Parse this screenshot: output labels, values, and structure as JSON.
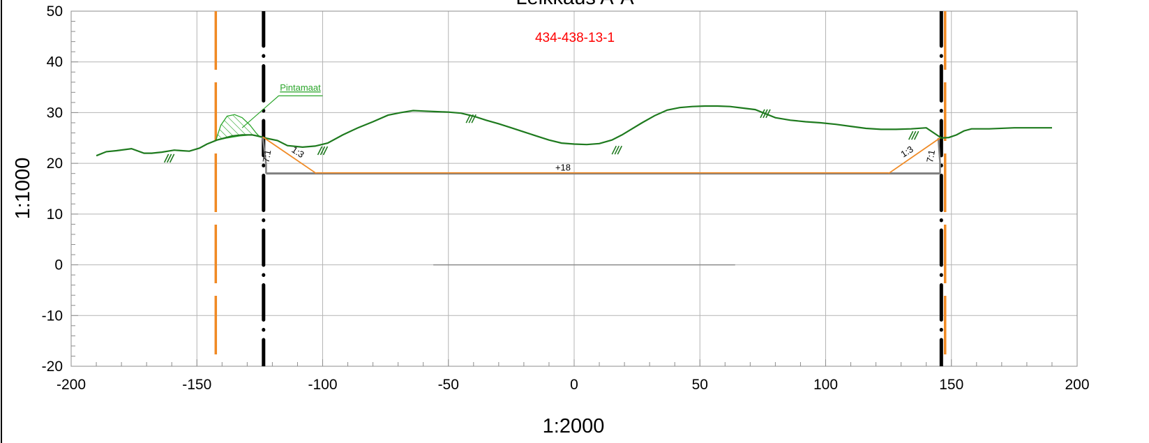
{
  "title": "Leikkaus A-A",
  "drawing_id": {
    "text": "434-438-13-1",
    "color": "#ff0000"
  },
  "colors": {
    "ground": "#1e7a1e",
    "hatch": "#2aa52a",
    "boundary_orange": "#f08a24",
    "boundary_black": "#000000",
    "slope_orange": "#f08a24",
    "base_grey": "#7f7f7f",
    "grid": "#b4b4b4"
  },
  "chart_data": {
    "type": "line",
    "title": "Leikkaus A-A",
    "xlabel": "1:2000",
    "ylabel": "1:1000",
    "xlim": [
      -200,
      200
    ],
    "ylim": [
      -20,
      50
    ],
    "xticks": [
      -200,
      -150,
      -100,
      -50,
      0,
      50,
      100,
      150,
      200
    ],
    "yticks": [
      -20,
      -10,
      0,
      10,
      20,
      30,
      40,
      50
    ],
    "grid": true,
    "ground_profile": {
      "x": [
        -190,
        -186,
        -182,
        -176,
        -171,
        -168,
        -164,
        -159,
        -156,
        -153,
        -149,
        -146,
        -142,
        -139,
        -136,
        -132,
        -128,
        -125,
        -122,
        -118,
        -114,
        -108,
        -103,
        -98,
        -92,
        -86,
        -80,
        -74,
        -69,
        -64,
        -60,
        -55,
        -50,
        -45,
        -40,
        -35,
        -30,
        -25,
        -20,
        -15,
        -10,
        -5,
        0,
        5,
        10,
        15,
        19,
        23,
        27,
        32,
        37,
        42,
        47,
        52,
        57,
        62,
        67,
        72,
        76,
        80,
        86,
        92,
        98,
        104,
        110,
        116,
        122,
        128,
        134,
        140,
        143,
        146,
        149,
        152,
        155,
        158,
        165,
        175,
        185,
        190
      ],
      "y": [
        21.5,
        22.3,
        22.5,
        22.9,
        22.0,
        22.0,
        22.2,
        22.6,
        22.5,
        22.4,
        23.0,
        23.8,
        24.6,
        25.0,
        25.4,
        25.6,
        25.6,
        25.3,
        24.9,
        24.5,
        23.5,
        23.2,
        23.4,
        24.0,
        25.6,
        27.0,
        28.2,
        29.5,
        30.0,
        30.4,
        30.3,
        30.2,
        30.1,
        29.9,
        29.3,
        28.5,
        27.8,
        27.0,
        26.2,
        25.4,
        24.6,
        24.0,
        23.8,
        23.7,
        23.9,
        24.6,
        25.6,
        26.8,
        28.0,
        29.4,
        30.5,
        31.0,
        31.2,
        31.3,
        31.3,
        31.2,
        30.9,
        30.6,
        29.8,
        29.0,
        28.5,
        28.2,
        28.0,
        27.7,
        27.3,
        26.9,
        26.7,
        26.7,
        26.8,
        27.0,
        26.0,
        25.0,
        25.1,
        25.6,
        26.4,
        26.8,
        26.8,
        27.0,
        27.0,
        27.0
      ]
    },
    "topsoil_area": {
      "label": "Pintamaat",
      "x": [
        -142.5,
        -140.5,
        -138,
        -135,
        -132,
        -129,
        -126.5,
        -125,
        -128,
        -133,
        -138,
        -142.5
      ],
      "y": [
        24.5,
        27.5,
        29.3,
        29.6,
        29.0,
        27.6,
        26.0,
        25.2,
        25.6,
        25.4,
        25.0,
        24.5
      ]
    },
    "excavation": {
      "base_label": "+18",
      "base_level": 18,
      "left_wall": {
        "x": [
          -122.5,
          -122.5,
          -123.8
        ],
        "y": [
          18,
          19.8,
          25.2
        ]
      },
      "right_wall": {
        "x": [
          145.5,
          145.5,
          144.8
        ],
        "y": [
          18,
          20.2,
          25.0
        ]
      },
      "left_slope": {
        "x": [
          -123.8,
          -102.5
        ],
        "y": [
          25.2,
          18
        ]
      },
      "right_slope": {
        "x": [
          125,
          145.5
        ],
        "y": [
          18,
          25.0
        ]
      },
      "slope_labels": [
        {
          "text": "7:1",
          "x": -121,
          "y": 21.3,
          "rotate": -80
        },
        {
          "text": "1:3",
          "x": -110.5,
          "y": 21.7,
          "rotate": 33
        },
        {
          "text": "1:3",
          "x": 133,
          "y": 21.8,
          "rotate": -33
        },
        {
          "text": "7:1",
          "x": 143,
          "y": 21.3,
          "rotate": -80
        }
      ]
    },
    "boundaries": [
      {
        "kind": "orange",
        "x": -142.5
      },
      {
        "kind": "black",
        "x": -123.5
      },
      {
        "kind": "black",
        "x": 146.0
      },
      {
        "kind": "orange",
        "x": 147.5
      }
    ],
    "slope_marks": [
      {
        "x": -161,
        "y": 21.0
      },
      {
        "x": -100,
        "y": 22.5
      },
      {
        "x": -41,
        "y": 28.8
      },
      {
        "x": 17,
        "y": 22.6
      },
      {
        "x": 76,
        "y": 29.8
      },
      {
        "x": 135,
        "y": 25.5
      }
    ],
    "zero_reference": {
      "x": [
        -56,
        64
      ],
      "y": [
        0,
        0
      ]
    }
  }
}
